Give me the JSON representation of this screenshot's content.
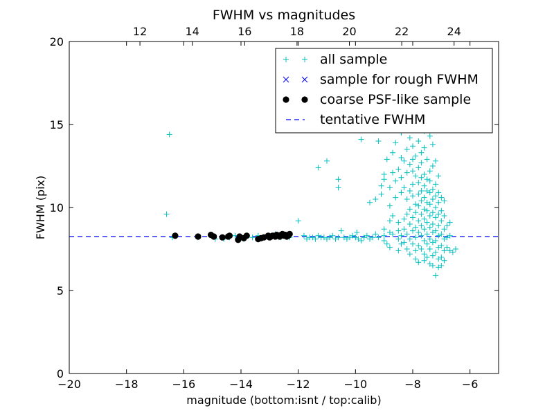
{
  "chart_data": {
    "type": "scatter",
    "title": "FWHM vs magnitudes",
    "xlabel": "magnitude (bottom:isnt / top:calib)",
    "ylabel": "FWHM (pix)",
    "xlim": [
      -20,
      -5
    ],
    "ylim": [
      0,
      20
    ],
    "x_ticks": [
      -20,
      -18,
      -16,
      -14,
      -12,
      -10,
      -8,
      -6
    ],
    "x_tick_labels": [
      "−20",
      "−18",
      "−16",
      "−14",
      "−12",
      "−10",
      "−8",
      "−6"
    ],
    "y_ticks": [
      0,
      5,
      10,
      15,
      20
    ],
    "y_tick_labels": [
      "0",
      "5",
      "10",
      "15",
      "20"
    ],
    "top_xlim": [
      9.3,
      25.7
    ],
    "top_x_ticks": [
      12,
      14,
      16,
      18,
      20,
      22,
      24
    ],
    "top_x_tick_labels": [
      "12",
      "14",
      "16",
      "18",
      "20",
      "22",
      "24"
    ],
    "grid": false,
    "legend": {
      "position": "top-right",
      "entries": [
        {
          "label": "all sample",
          "marker": "plus",
          "color": "#00bfbf"
        },
        {
          "label": "sample for rough FWHM",
          "marker": "x",
          "color": "#0000ff"
        },
        {
          "label": "coarse PSF-like sample",
          "marker": "circle",
          "color": "#000000"
        },
        {
          "label": "tentative FWHM",
          "marker": "dashed-line",
          "color": "#0000ff"
        }
      ]
    },
    "series": [
      {
        "name": "all sample",
        "marker": "plus",
        "color": "#00bfbf",
        "points": [
          [
            -16.5,
            14.4
          ],
          [
            -16.6,
            9.6
          ],
          [
            -16.4,
            8.2
          ],
          [
            -16.3,
            8.3
          ],
          [
            -15.5,
            8.2
          ],
          [
            -15.0,
            8.3
          ],
          [
            -14.9,
            8.1
          ],
          [
            -14.6,
            8.1
          ],
          [
            -14.4,
            8.2
          ],
          [
            -14.2,
            8.3
          ],
          [
            -13.9,
            8.1
          ],
          [
            -13.6,
            8.2
          ],
          [
            -13.4,
            8.3
          ],
          [
            -13.2,
            8.2
          ],
          [
            -13.0,
            8.3
          ],
          [
            -12.8,
            8.4
          ],
          [
            -12.6,
            8.2
          ],
          [
            -12.3,
            8.2
          ],
          [
            -12.0,
            9.2
          ],
          [
            -11.8,
            8.3
          ],
          [
            -11.7,
            8.1
          ],
          [
            -11.6,
            8.2
          ],
          [
            -11.5,
            8.2
          ],
          [
            -11.4,
            8.1
          ],
          [
            -11.3,
            8.3
          ],
          [
            -11.3,
            12.4
          ],
          [
            -11.2,
            8.2
          ],
          [
            -11.1,
            8.2
          ],
          [
            -11.0,
            8.1
          ],
          [
            -11.0,
            12.8
          ],
          [
            -10.9,
            8.2
          ],
          [
            -10.8,
            8.3
          ],
          [
            -10.7,
            8.1
          ],
          [
            -10.6,
            8.2
          ],
          [
            -10.6,
            11.2
          ],
          [
            -10.6,
            11.7
          ],
          [
            -10.5,
            8.6
          ],
          [
            -10.4,
            8.2
          ],
          [
            -10.3,
            8.1
          ],
          [
            -10.2,
            8.2
          ],
          [
            -10.1,
            8.3
          ],
          [
            -10.0,
            8.2
          ],
          [
            -9.95,
            8.5
          ],
          [
            -9.9,
            8.1
          ],
          [
            -9.8,
            14.1
          ],
          [
            -9.8,
            8.0
          ],
          [
            -9.7,
            8.2
          ],
          [
            -9.6,
            8.3
          ],
          [
            -9.5,
            8.1
          ],
          [
            -9.5,
            10.3
          ],
          [
            -9.4,
            8.2
          ],
          [
            -9.3,
            10.5
          ],
          [
            -9.3,
            8.4
          ],
          [
            -9.2,
            8.2
          ],
          [
            -9.2,
            14.0
          ],
          [
            -9.1,
            10.8
          ],
          [
            -9.1,
            11.3
          ],
          [
            -9.0,
            11.7
          ],
          [
            -9.0,
            12.0
          ],
          [
            -9.0,
            8.7
          ],
          [
            -9.0,
            8.3
          ],
          [
            -9.0,
            8.0
          ],
          [
            -8.9,
            7.8
          ],
          [
            -8.9,
            12.9
          ],
          [
            -8.9,
            15.0
          ],
          [
            -8.9,
            17.2
          ],
          [
            -8.8,
            11.2
          ],
          [
            -8.8,
            10.1
          ],
          [
            -8.8,
            9.2
          ],
          [
            -8.8,
            8.5
          ],
          [
            -8.8,
            7.6
          ],
          [
            -8.7,
            13.3
          ],
          [
            -8.7,
            12.1
          ],
          [
            -8.7,
            9.5
          ],
          [
            -8.7,
            8.4
          ],
          [
            -8.6,
            16.5
          ],
          [
            -8.6,
            13.9
          ],
          [
            -8.6,
            11.6
          ],
          [
            -8.6,
            10.6
          ],
          [
            -8.5,
            12.3
          ],
          [
            -8.5,
            9.1
          ],
          [
            -8.5,
            8.6
          ],
          [
            -8.5,
            8.1
          ],
          [
            -8.5,
            7.4
          ],
          [
            -8.4,
            14.5
          ],
          [
            -8.4,
            13.0
          ],
          [
            -8.4,
            11.8
          ],
          [
            -8.4,
            10.9
          ],
          [
            -8.4,
            8.3
          ],
          [
            -8.4,
            7.8
          ],
          [
            -8.3,
            12.8
          ],
          [
            -8.3,
            11.2
          ],
          [
            -8.3,
            9.3
          ],
          [
            -8.3,
            8.7
          ],
          [
            -8.3,
            7.9
          ],
          [
            -8.2,
            15.4
          ],
          [
            -8.2,
            13.5
          ],
          [
            -8.2,
            12.1
          ],
          [
            -8.2,
            10.5
          ],
          [
            -8.2,
            9.6
          ],
          [
            -8.2,
            8.4
          ],
          [
            -8.2,
            7.5
          ],
          [
            -8.1,
            16.9
          ],
          [
            -8.1,
            14.2
          ],
          [
            -8.1,
            12.6
          ],
          [
            -8.1,
            11.0
          ],
          [
            -8.1,
            9.9
          ],
          [
            -8.1,
            9.0
          ],
          [
            -8.1,
            8.1
          ],
          [
            -8.1,
            7.2
          ],
          [
            -8.0,
            15.8
          ],
          [
            -8.0,
            13.7
          ],
          [
            -8.0,
            12.9
          ],
          [
            -8.0,
            12.2
          ],
          [
            -8.0,
            11.4
          ],
          [
            -8.0,
            10.7
          ],
          [
            -8.0,
            9.4
          ],
          [
            -8.0,
            8.6
          ],
          [
            -8.0,
            7.8
          ],
          [
            -7.9,
            14.8
          ],
          [
            -7.9,
            13.1
          ],
          [
            -7.9,
            11.9
          ],
          [
            -7.9,
            10.2
          ],
          [
            -7.9,
            9.7
          ],
          [
            -7.9,
            8.8
          ],
          [
            -7.9,
            8.2
          ],
          [
            -7.9,
            7.4
          ],
          [
            -7.9,
            6.9
          ],
          [
            -7.8,
            16.2
          ],
          [
            -7.8,
            14.0
          ],
          [
            -7.8,
            12.4
          ],
          [
            -7.8,
            11.5
          ],
          [
            -7.8,
            10.8
          ],
          [
            -7.8,
            10.1
          ],
          [
            -7.8,
            9.2
          ],
          [
            -7.8,
            8.5
          ],
          [
            -7.8,
            7.7
          ],
          [
            -7.8,
            6.7
          ],
          [
            -7.7,
            15.1
          ],
          [
            -7.7,
            13.3
          ],
          [
            -7.7,
            12.7
          ],
          [
            -7.7,
            11.8
          ],
          [
            -7.7,
            11.0
          ],
          [
            -7.7,
            10.4
          ],
          [
            -7.7,
            9.6
          ],
          [
            -7.7,
            8.9
          ],
          [
            -7.7,
            8.3
          ],
          [
            -7.7,
            7.5
          ],
          [
            -7.6,
            14.6
          ],
          [
            -7.6,
            13.6
          ],
          [
            -7.6,
            12.0
          ],
          [
            -7.6,
            11.3
          ],
          [
            -7.6,
            10.6
          ],
          [
            -7.6,
            9.9
          ],
          [
            -7.6,
            9.3
          ],
          [
            -7.6,
            8.7
          ],
          [
            -7.6,
            8.0
          ],
          [
            -7.6,
            7.2
          ],
          [
            -7.6,
            6.8
          ],
          [
            -7.5,
            15.9
          ],
          [
            -7.5,
            12.9
          ],
          [
            -7.5,
            11.7
          ],
          [
            -7.5,
            11.0
          ],
          [
            -7.5,
            10.3
          ],
          [
            -7.5,
            9.8
          ],
          [
            -7.5,
            9.1
          ],
          [
            -7.5,
            8.4
          ],
          [
            -7.5,
            7.8
          ],
          [
            -7.5,
            7.0
          ],
          [
            -7.4,
            14.3
          ],
          [
            -7.4,
            12.2
          ],
          [
            -7.4,
            11.6
          ],
          [
            -7.4,
            10.9
          ],
          [
            -7.4,
            10.2
          ],
          [
            -7.4,
            9.5
          ],
          [
            -7.4,
            8.8
          ],
          [
            -7.4,
            8.1
          ],
          [
            -7.4,
            7.5
          ],
          [
            -7.4,
            6.6
          ],
          [
            -7.3,
            13.8
          ],
          [
            -7.3,
            12.5
          ],
          [
            -7.3,
            11.1
          ],
          [
            -7.3,
            10.5
          ],
          [
            -7.3,
            9.7
          ],
          [
            -7.3,
            9.0
          ],
          [
            -7.3,
            8.5
          ],
          [
            -7.3,
            7.9
          ],
          [
            -7.3,
            7.1
          ],
          [
            -7.3,
            6.5
          ],
          [
            -7.2,
            12.8
          ],
          [
            -7.2,
            11.4
          ],
          [
            -7.2,
            10.7
          ],
          [
            -7.2,
            10.0
          ],
          [
            -7.2,
            9.4
          ],
          [
            -7.2,
            8.6
          ],
          [
            -7.2,
            8.0
          ],
          [
            -7.2,
            7.3
          ],
          [
            -7.2,
            5.9
          ],
          [
            -7.1,
            11.9
          ],
          [
            -7.1,
            10.9
          ],
          [
            -7.1,
            10.3
          ],
          [
            -7.1,
            9.6
          ],
          [
            -7.1,
            8.9
          ],
          [
            -7.1,
            8.3
          ],
          [
            -7.1,
            7.6
          ],
          [
            -7.1,
            6.9
          ],
          [
            -7.1,
            6.4
          ],
          [
            -7.0,
            10.6
          ],
          [
            -7.0,
            9.8
          ],
          [
            -7.0,
            9.2
          ],
          [
            -7.0,
            8.4
          ],
          [
            -7.0,
            7.7
          ],
          [
            -7.0,
            7.0
          ],
          [
            -7.0,
            6.5
          ],
          [
            -6.9,
            10.4
          ],
          [
            -6.9,
            9.5
          ],
          [
            -6.9,
            8.7
          ],
          [
            -6.9,
            8.1
          ],
          [
            -6.9,
            7.4
          ],
          [
            -6.9,
            6.8
          ],
          [
            -6.8,
            8.9
          ],
          [
            -6.8,
            8.2
          ],
          [
            -6.8,
            7.6
          ],
          [
            -6.7,
            9.1
          ],
          [
            -6.7,
            8.3
          ],
          [
            -6.7,
            7.4
          ],
          [
            -6.6,
            7.3
          ],
          [
            -6.5,
            7.5
          ],
          [
            -9.4,
            21.2
          ],
          [
            -9.0,
            20.4
          ],
          [
            -8.3,
            20.6
          ],
          [
            -8.0,
            21.5
          ],
          [
            -7.6,
            20.9
          ]
        ]
      },
      {
        "name": "sample for rough FWHM",
        "marker": "x",
        "color": "#0000ff",
        "points": []
      },
      {
        "name": "coarse PSF-like sample",
        "marker": "circle",
        "color": "#000000",
        "points": [
          [
            -16.3,
            8.3
          ],
          [
            -15.5,
            8.25
          ],
          [
            -15.05,
            8.35
          ],
          [
            -14.95,
            8.25
          ],
          [
            -14.65,
            8.2
          ],
          [
            -14.45,
            8.25
          ],
          [
            -14.4,
            8.3
          ],
          [
            -14.1,
            8.05
          ],
          [
            -14.05,
            8.25
          ],
          [
            -13.9,
            8.15
          ],
          [
            -13.8,
            8.3
          ],
          [
            -13.4,
            8.1
          ],
          [
            -13.3,
            8.15
          ],
          [
            -13.2,
            8.2
          ],
          [
            -13.05,
            8.3
          ],
          [
            -13.0,
            8.2
          ],
          [
            -12.95,
            8.25
          ],
          [
            -12.9,
            8.3
          ],
          [
            -12.85,
            8.3
          ],
          [
            -12.8,
            8.25
          ],
          [
            -12.75,
            8.35
          ],
          [
            -12.7,
            8.3
          ],
          [
            -12.65,
            8.25
          ],
          [
            -12.6,
            8.35
          ],
          [
            -12.55,
            8.4
          ],
          [
            -12.5,
            8.3
          ],
          [
            -12.45,
            8.35
          ],
          [
            -12.4,
            8.25
          ],
          [
            -12.35,
            8.3
          ],
          [
            -12.3,
            8.4
          ]
        ]
      }
    ],
    "reference_lines": [
      {
        "name": "tentative FWHM",
        "y": 8.25,
        "style": "dashed",
        "color": "#0000ff"
      }
    ]
  }
}
